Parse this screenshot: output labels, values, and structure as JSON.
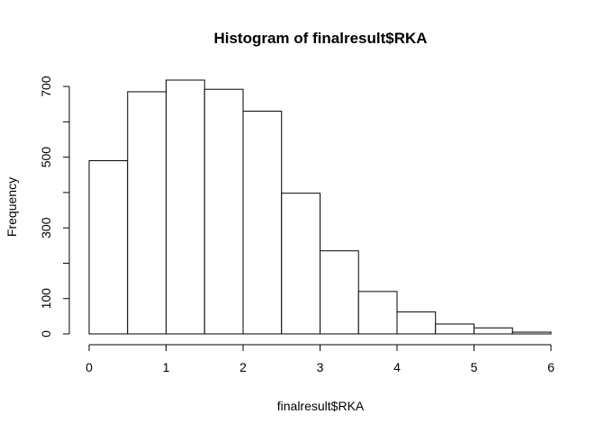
{
  "chart_data": {
    "type": "bar",
    "title": "Histogram of finalresult$RKA",
    "xlabel": "finalresult$RKA",
    "ylabel": "Frequency",
    "bin_edges": [
      0,
      0.5,
      1,
      1.5,
      2,
      2.5,
      3,
      3.5,
      4,
      4.5,
      5,
      5.5,
      6
    ],
    "values": [
      490,
      685,
      718,
      692,
      630,
      398,
      235,
      120,
      62,
      28,
      17,
      5
    ],
    "xlim": [
      0,
      6
    ],
    "ylim": [
      0,
      718
    ],
    "x_ticks": [
      0,
      1,
      2,
      3,
      4,
      5,
      6
    ],
    "y_ticks": [
      0,
      100,
      200,
      300,
      400,
      500,
      600,
      700
    ],
    "y_tick_labels": [
      "0",
      "100",
      "",
      "300",
      "",
      "500",
      "",
      "700"
    ],
    "grid": false,
    "colors": {
      "bar_fill": "#ffffff",
      "bar_stroke": "#000000"
    }
  }
}
